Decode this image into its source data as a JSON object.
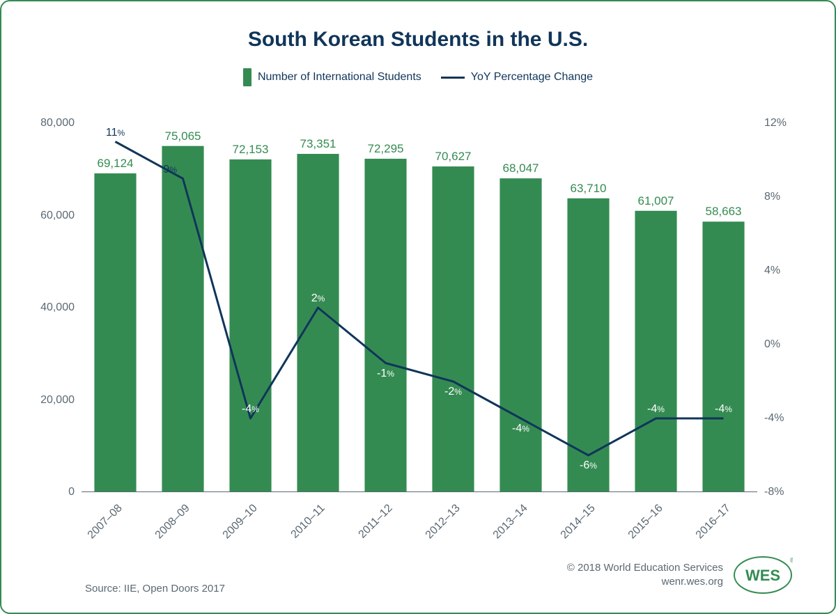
{
  "title": "South Korean Students in the U.S.",
  "legend": {
    "bar_label": "Number of International Students",
    "line_label": "YoY Percentage Change"
  },
  "chart": {
    "type": "bar+line",
    "categories": [
      "2007–08",
      "2008–09",
      "2009–10",
      "2010–11",
      "2011–12",
      "2012–13",
      "2013–14",
      "2014–15",
      "2015–16",
      "2016–17"
    ],
    "bar_values": [
      69124,
      75065,
      72153,
      73351,
      72295,
      70627,
      68047,
      63710,
      61007,
      58663
    ],
    "bar_labels": [
      "69,124",
      "75,065",
      "72,153",
      "73,351",
      "72,295",
      "70,627",
      "68,047",
      "63,710",
      "61,007",
      "58,663"
    ],
    "line_values": [
      11,
      9,
      -4,
      2,
      -1,
      -2,
      -4,
      -6,
      -4,
      -4
    ],
    "line_labels": [
      "11%",
      "9%",
      "-4%",
      "2%",
      "-1%",
      "-2%",
      "-4%",
      "-6%",
      "-4%",
      "-4%"
    ],
    "line_label_positions": [
      "above",
      "above",
      "above",
      "above",
      "below",
      "below",
      "below",
      "below",
      "above",
      "above"
    ],
    "line_label_colors": [
      "#103559",
      "#103559",
      "#ffffff",
      "#ffffff",
      "#ffffff",
      "#ffffff",
      "#ffffff",
      "#ffffff",
      "#ffffff",
      "#ffffff"
    ],
    "line_label_align": [
      "center",
      "left",
      "center",
      "center",
      "center",
      "center",
      "center",
      "center",
      "center",
      "center"
    ],
    "bar_color": "#348b52",
    "line_color": "#103559",
    "line_width": 3,
    "bar_width_ratio": 0.62,
    "left_axis": {
      "min": 0,
      "max": 80000,
      "step": 20000,
      "tick_labels": [
        "0",
        "20,000",
        "40,000",
        "60,000",
        "80,000"
      ]
    },
    "right_axis": {
      "min": -8,
      "max": 12,
      "step": 4,
      "tick_labels": [
        "-8%",
        "-4%",
        "0%",
        "4%",
        "8%",
        "12%"
      ]
    },
    "axis_label_color": "#5b6872",
    "title_color": "#103559",
    "title_fontsize": 30,
    "background_color": "#ffffff",
    "border_color": "#348b52"
  },
  "footer": {
    "source": "Source: IIE, Open Doors 2017",
    "copyright": "© 2018 World Education Services",
    "url": "wenr.wes.org",
    "logo_text": "WES",
    "logo_color": "#348b52"
  }
}
